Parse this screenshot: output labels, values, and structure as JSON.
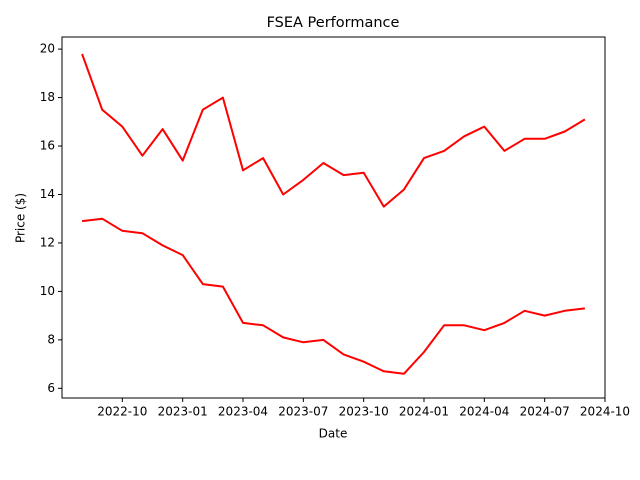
{
  "chart_data": {
    "type": "line",
    "title": "FSEA Performance",
    "x_label": "Date",
    "y_label": "Price ($)",
    "x": [
      "2022-08",
      "2022-09",
      "2022-10",
      "2022-11",
      "2022-12",
      "2023-01",
      "2023-02",
      "2023-03",
      "2023-04",
      "2023-05",
      "2023-06",
      "2023-07",
      "2023-08",
      "2023-09",
      "2023-10",
      "2023-11",
      "2023-12",
      "2024-01",
      "2024-02",
      "2024-03",
      "2024-04",
      "2024-05",
      "2024-06",
      "2024-07",
      "2024-08",
      "2024-09"
    ],
    "series": [
      {
        "color": "#ff0000",
        "values": [
          19.8,
          17.5,
          16.8,
          15.6,
          16.7,
          15.4,
          17.5,
          18.0,
          15.0,
          15.5,
          14.0,
          14.6,
          15.3,
          14.8,
          14.9,
          13.5,
          14.2,
          15.5,
          15.8,
          16.4,
          16.8,
          15.8,
          16.3,
          16.3,
          16.6,
          17.1
        ]
      },
      {
        "color": "#ff0000",
        "values": [
          12.9,
          13.0,
          12.5,
          12.4,
          11.9,
          11.5,
          10.3,
          10.2,
          8.7,
          8.6,
          8.1,
          7.9,
          8.0,
          7.4,
          7.1,
          6.7,
          6.6,
          7.5,
          8.6,
          8.6,
          8.4,
          8.7,
          9.2,
          9.0,
          9.2,
          9.3
        ]
      }
    ],
    "xlim": [
      "2022-07",
      "2024-10"
    ],
    "xticks": [
      "2022-10",
      "2023-01",
      "2023-04",
      "2023-07",
      "2023-10",
      "2024-01",
      "2024-04",
      "2024-07",
      "2024-10"
    ],
    "ylim": [
      5.6,
      20.5
    ],
    "yticks": [
      6,
      8,
      10,
      12,
      14,
      16,
      18,
      20
    ]
  }
}
